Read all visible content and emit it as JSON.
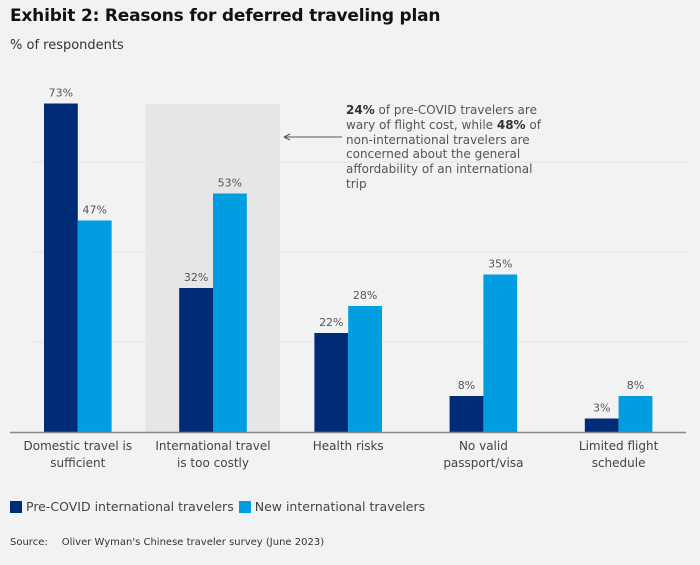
{
  "header": {
    "title": "Exhibit 2: Reasons for deferred traveling plan",
    "subtitle": "% of respondents"
  },
  "annotation": {
    "bold1": "24%",
    "text1": " of pre-COVID travelers are wary of flight cost, while ",
    "bold2": "48%",
    "text2": " of non-international travelers are concerned about the general affordability of an international trip",
    "target_category": "International travel is too costly"
  },
  "legend": {
    "items": [
      {
        "label": "Pre-COVID international travelers",
        "color": "#002c77"
      },
      {
        "label": "New international travelers",
        "color": "#009de0"
      }
    ],
    "placement": "bottom-left"
  },
  "source": {
    "label": "Source:",
    "text": "Oliver Wyman's Chinese traveler survey (June 2023)"
  },
  "chart_data": {
    "type": "bar",
    "title": "Exhibit 2: Reasons for deferred traveling plan",
    "subtitle": "% of respondents",
    "xlabel": "",
    "ylabel": "% of respondents",
    "ylim": [
      0,
      80
    ],
    "grid": true,
    "gridlines": [
      20,
      40,
      60
    ],
    "categories": [
      [
        "Domestic travel is",
        "sufficient"
      ],
      [
        "International travel",
        "is too costly"
      ],
      [
        "Health risks"
      ],
      [
        "No valid",
        "passport/visa"
      ],
      [
        "Limited flight",
        "schedule"
      ]
    ],
    "highlighted_category_index": 1,
    "series": [
      {
        "name": "Pre-COVID international travelers",
        "color": "#002c77",
        "values": [
          73,
          32,
          22,
          8,
          3
        ]
      },
      {
        "name": "New international travelers",
        "color": "#009de0",
        "values": [
          47,
          53,
          28,
          35,
          8
        ]
      }
    ],
    "value_suffix": "%",
    "legend_position": "bottom-left"
  }
}
